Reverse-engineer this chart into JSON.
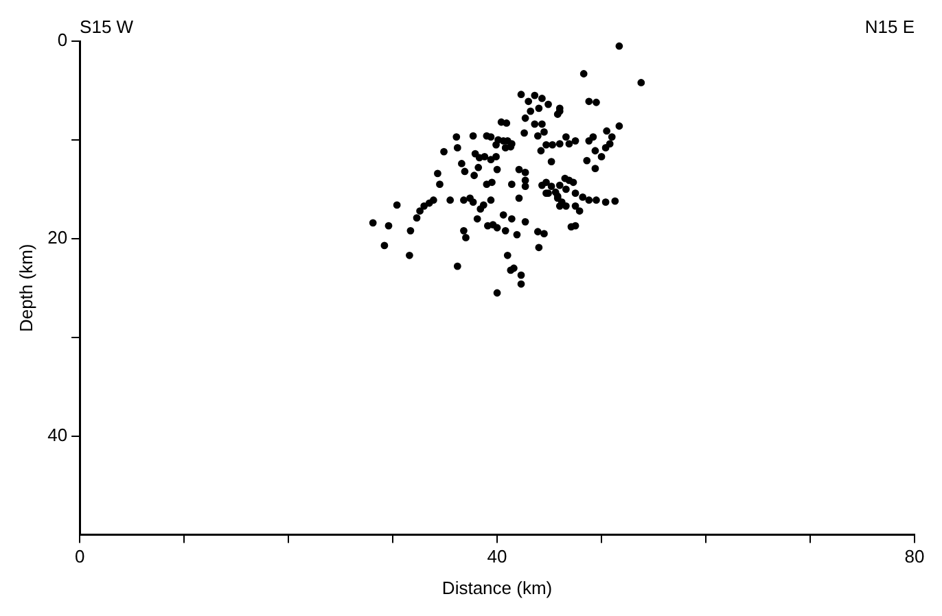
{
  "chart_data": {
    "type": "scatter",
    "xlabel": "Distance (km)",
    "ylabel": "Depth (km)",
    "annotations": [
      "S15 W",
      "N15 E"
    ],
    "xlim": [
      0,
      80
    ],
    "xticks": [
      0,
      {
        "value": 10,
        "label": null
      },
      {
        "value": 20,
        "label": null
      },
      {
        "value": 30,
        "label": null
      },
      40,
      {
        "value": 50,
        "label": null
      },
      {
        "value": 60,
        "label": null
      },
      {
        "value": 70,
        "label": null
      },
      80
    ],
    "ylim": [
      50,
      0
    ],
    "yticks": [
      0,
      {
        "value": 10,
        "label": null
      },
      20,
      {
        "value": 30,
        "label": null
      },
      40
    ],
    "grid": false,
    "legend": false,
    "marker": "circle",
    "series": [
      {
        "color": "#000000",
        "x": [
          28.1,
          29.2,
          29.6,
          30.4,
          31.6,
          31.7,
          32.3,
          32.6,
          33.0,
          33.5,
          33.9,
          34.3,
          34.5,
          34.9,
          35.5,
          36.1,
          36.2,
          36.6,
          36.9,
          36.8,
          37.4,
          37.7,
          36.8,
          37.0,
          36.2,
          37.7,
          37.9,
          38.3,
          38.8,
          39.4,
          39.9,
          37.8,
          38.2,
          38.4,
          38.7,
          38.1,
          39.0,
          39.4,
          39.0,
          39.5,
          39.1,
          39.6,
          40.0,
          39.4,
          39.9,
          40.1,
          40.6,
          41.0,
          40.0,
          40.8,
          41.3,
          41.4,
          40.4,
          40.9,
          40.6,
          41.4,
          40.8,
          41.9,
          41.0,
          41.3,
          41.6,
          40.0,
          42.3,
          42.3,
          41.4,
          42.1,
          42.7,
          42.7,
          42.1,
          42.7,
          42.7,
          42.6,
          43.9,
          44.5,
          44.0,
          42.3,
          43.0,
          43.6,
          44.3,
          44.9,
          43.2,
          44.0,
          42.7,
          46.0,
          43.6,
          44.3,
          45.8,
          46.0,
          43.9,
          44.5,
          44.2,
          44.7,
          45.3,
          46.0,
          45.2,
          44.3,
          44.7,
          45.2,
          44.9,
          45.6,
          46.0,
          46.5,
          45.8,
          46.2,
          51.7,
          48.3,
          53.8,
          48.8,
          49.5,
          46.6,
          46.9,
          47.5,
          48.8,
          49.2,
          49.4,
          50.5,
          51.0,
          50.8,
          50.4,
          51.7,
          48.6,
          50.0,
          49.4,
          44.7,
          45.8,
          46.9,
          47.3,
          46.6,
          47.5,
          48.2,
          48.8,
          49.5,
          50.4,
          51.3,
          46.0,
          46.6,
          47.5,
          47.9,
          47.1,
          47.5
        ],
        "values": [
          18.4,
          20.7,
          18.7,
          16.6,
          21.7,
          19.2,
          17.9,
          17.2,
          16.7,
          16.4,
          16.1,
          13.4,
          14.5,
          11.2,
          16.1,
          9.7,
          10.8,
          12.4,
          13.2,
          16.1,
          15.9,
          16.3,
          19.2,
          19.9,
          22.8,
          9.6,
          11.4,
          11.8,
          11.7,
          12.0,
          11.7,
          13.6,
          12.8,
          17.0,
          16.6,
          18.0,
          9.6,
          9.7,
          14.5,
          14.3,
          18.7,
          18.6,
          18.9,
          16.1,
          10.5,
          10.0,
          10.1,
          10.1,
          13.0,
          10.8,
          10.7,
          10.4,
          8.2,
          8.3,
          17.6,
          18.0,
          19.2,
          19.6,
          21.7,
          23.2,
          23.0,
          25.5,
          23.7,
          24.6,
          14.5,
          13.0,
          13.3,
          14.1,
          15.9,
          18.3,
          14.7,
          9.3,
          19.3,
          19.5,
          20.9,
          5.4,
          6.1,
          5.5,
          5.8,
          6.4,
          7.1,
          6.8,
          7.8,
          7.1,
          8.4,
          8.4,
          7.4,
          6.8,
          9.6,
          9.2,
          11.1,
          10.5,
          10.5,
          10.4,
          12.2,
          14.6,
          14.3,
          14.7,
          15.4,
          15.3,
          14.6,
          13.9,
          15.9,
          16.3,
          0.5,
          3.3,
          4.2,
          6.1,
          6.2,
          9.7,
          10.4,
          10.1,
          10.1,
          9.7,
          11.1,
          9.1,
          9.7,
          10.4,
          10.8,
          8.6,
          12.1,
          11.7,
          12.9,
          15.4,
          15.7,
          14.1,
          14.3,
          15.0,
          15.4,
          15.8,
          16.1,
          16.1,
          16.3,
          16.2,
          16.7,
          16.7,
          16.7,
          17.2,
          18.8,
          18.7
        ]
      }
    ]
  }
}
